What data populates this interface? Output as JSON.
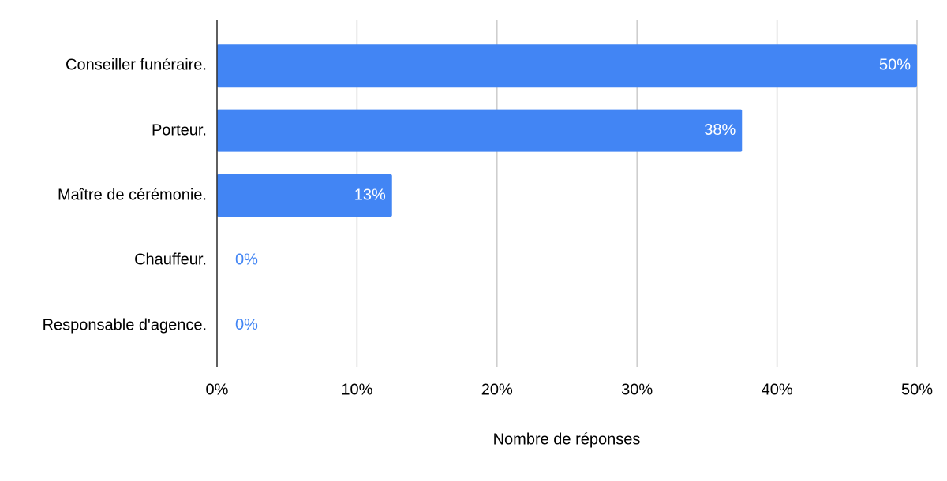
{
  "chart_data": {
    "type": "bar",
    "orientation": "horizontal",
    "categories": [
      "Conseiller funéraire.",
      "Porteur.",
      "Maître de cérémonie.",
      "Chauffeur.",
      "Responsable d'agence."
    ],
    "values": [
      50,
      37.5,
      12.5,
      0,
      0
    ],
    "value_labels": [
      "50%",
      "38%",
      "13%",
      "0%",
      "0%"
    ],
    "color": "#4285f4",
    "xlabel": "Nombre de réponses",
    "xlim": [
      0,
      50
    ],
    "xticks": [
      {
        "value": 0,
        "label": "0%"
      },
      {
        "value": 10,
        "label": "10%"
      },
      {
        "value": 20,
        "label": "20%"
      },
      {
        "value": 30,
        "label": "30%"
      },
      {
        "value": 40,
        "label": "40%"
      },
      {
        "value": 50,
        "label": "50%"
      }
    ],
    "grid": true
  }
}
